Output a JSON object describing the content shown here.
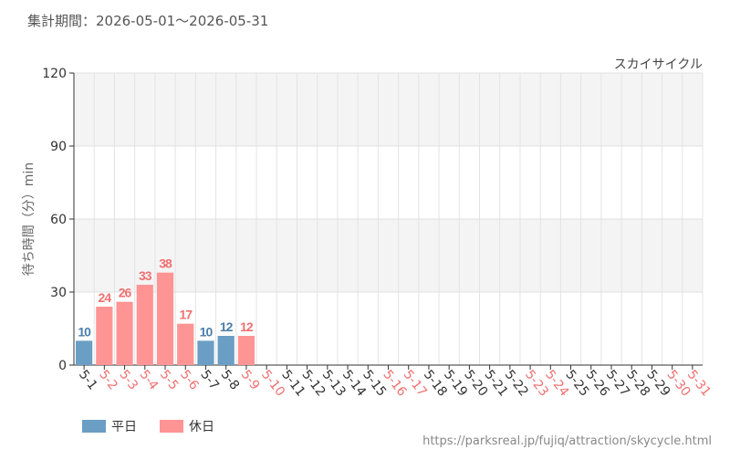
{
  "period": "集計期間：2026-05-01～2026-05-31",
  "source": "https://parksreal.jp/fujiq/attraction/skycycle.html",
  "chart_data": {
    "type": "bar",
    "title": "スカイサイクル",
    "y_label": "待ち時間（分）min",
    "categories": [
      "5-1",
      "5-2",
      "5-3",
      "5-4",
      "5-5",
      "5-6",
      "5-7",
      "5-8",
      "5-9",
      "5-10",
      "5-11",
      "5-12",
      "5-13",
      "5-14",
      "5-15",
      "5-16",
      "5-17",
      "5-18",
      "5-19",
      "5-20",
      "5-21",
      "5-22",
      "5-23",
      "5-24",
      "5-25",
      "5-26",
      "5-27",
      "5-28",
      "5-29",
      "5-30",
      "5-31"
    ],
    "category_colors": [
      "#333",
      "#f07070",
      "#f07070",
      "#f07070",
      "#f07070",
      "#f07070",
      "#333",
      "#333",
      "#f07070",
      "#f07070",
      "#333",
      "#333",
      "#333",
      "#333",
      "#333",
      "#f07070",
      "#f07070",
      "#333",
      "#333",
      "#333",
      "#333",
      "#333",
      "#f07070",
      "#f07070",
      "#333",
      "#333",
      "#333",
      "#333",
      "#333",
      "#f07070",
      "#f07070"
    ],
    "series": [
      {
        "name": "平日",
        "color": "#6a9ec5",
        "label_color": "#4a7eaa",
        "values": [
          10,
          null,
          null,
          null,
          null,
          null,
          10,
          12,
          null,
          null,
          null,
          null,
          null,
          null,
          null,
          null,
          null,
          null,
          null,
          null,
          null,
          null,
          null,
          null,
          null,
          null,
          null,
          null,
          null,
          null,
          null
        ]
      },
      {
        "name": "休日",
        "color": "#ff9494",
        "label_color": "#f07070",
        "values": [
          null,
          24,
          26,
          33,
          38,
          17,
          null,
          null,
          12,
          null,
          null,
          null,
          null,
          null,
          null,
          null,
          null,
          null,
          null,
          null,
          null,
          null,
          null,
          null,
          null,
          null,
          null,
          null,
          null,
          null,
          null
        ]
      }
    ],
    "ylim": [
      0,
      120
    ],
    "yticks": [
      0,
      30,
      60,
      90,
      120
    ],
    "grid": true
  }
}
